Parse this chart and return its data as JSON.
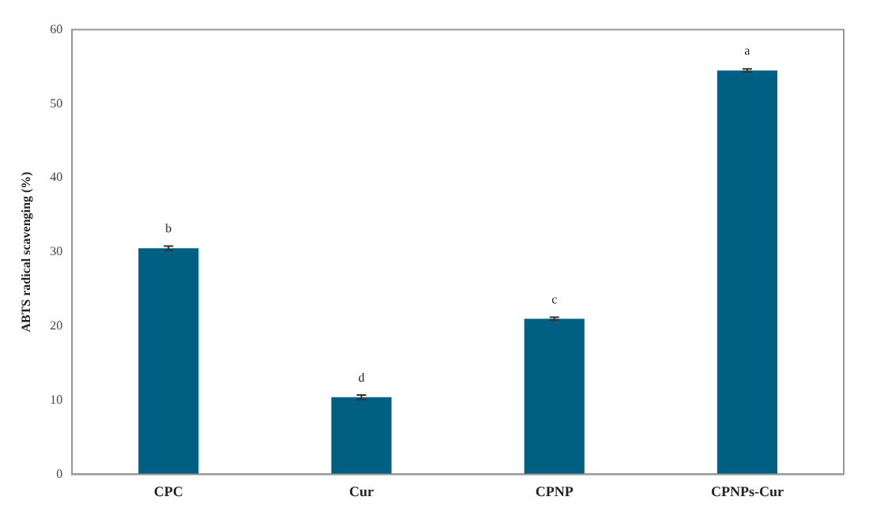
{
  "chart_data": {
    "type": "bar",
    "ylabel": "ABTS radical scavenging (%)",
    "categories": [
      "CPC",
      "Cur",
      "CPNP",
      "CPNPs-Cur"
    ],
    "values": [
      30.5,
      10.4,
      21,
      54.5
    ],
    "errors": [
      0.3,
      0.3,
      0.2,
      0.2
    ],
    "color": "#005f83",
    "ylim": [
      0,
      60
    ],
    "yticks": [
      0,
      10,
      20,
      30,
      40,
      50,
      60
    ],
    "grid": false,
    "legend": false,
    "annotations": [
      {
        "text": "b",
        "x": "CPC",
        "y": 30.5
      },
      {
        "text": "d",
        "x": "Cur",
        "y": 10.4
      },
      {
        "text": "c",
        "x": "CPNP",
        "y": 21
      },
      {
        "text": "a",
        "x": "CPNPs-Cur",
        "y": 54.5
      }
    ]
  }
}
